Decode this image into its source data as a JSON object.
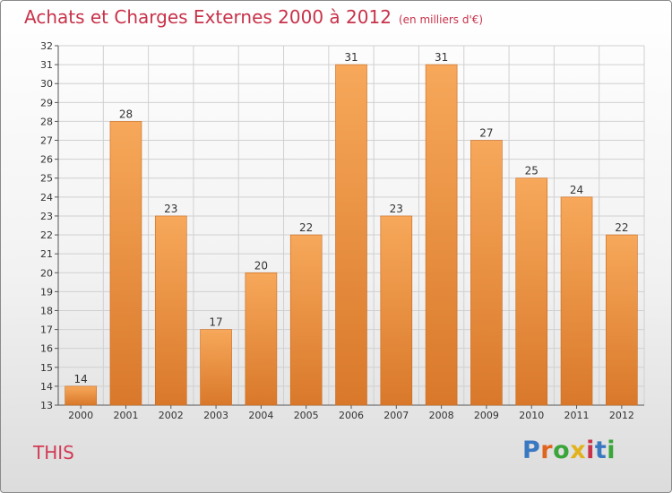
{
  "title": "Achats et Charges Externes 2000 à 2012",
  "unit": "(en milliers d'€)",
  "commune": "THIS",
  "logo": {
    "text": "Proxiti",
    "letter_colors": [
      "#3a78c2",
      "#e0641e",
      "#3aa53a",
      "#e2b21c",
      "#c8324a",
      "#3a78c2",
      "#3aa53a"
    ]
  },
  "colors": {
    "bar_top": "#f7a85a",
    "bar_bottom": "#d9782a",
    "title": "#c8324a",
    "grid": "#d0d0d0"
  },
  "chart_data": {
    "type": "bar",
    "categories": [
      "2000",
      "2001",
      "2002",
      "2003",
      "2004",
      "2005",
      "2006",
      "2007",
      "2008",
      "2009",
      "2010",
      "2011",
      "2012"
    ],
    "values": [
      14,
      28,
      23,
      17,
      20,
      22,
      31,
      23,
      31,
      27,
      25,
      24,
      22
    ],
    "ylim": [
      13,
      32
    ],
    "yticks": [
      13,
      14,
      15,
      16,
      17,
      18,
      19,
      20,
      21,
      22,
      23,
      24,
      25,
      26,
      27,
      28,
      29,
      30,
      31,
      32
    ],
    "grid": true
  }
}
